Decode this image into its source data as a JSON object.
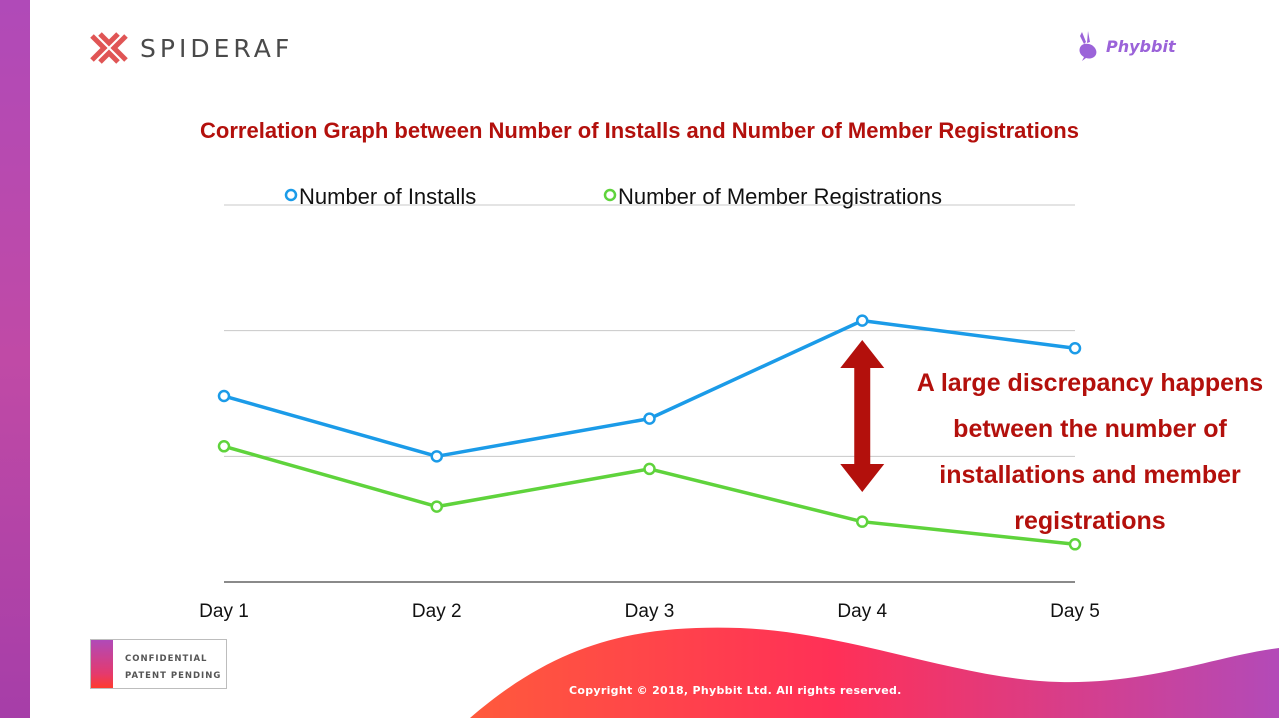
{
  "brand": {
    "left_logo_text": "SPIDERAF",
    "right_logo_text": "Phybbit"
  },
  "footer": {
    "confidential": "CONFIDENTIAL",
    "patent": "PATENT PENDING",
    "copyright": "Copyright © 2018, Phybbit Ltd. All rights reserved."
  },
  "annotation": {
    "line1": "A large discrepancy happens",
    "line2": "between the number of",
    "line3": "installations and member",
    "line4": "registrations"
  },
  "colors": {
    "title": "#b3100c",
    "installs": "#1b9be8",
    "registrations": "#5fd33c",
    "arrow": "#b3100c",
    "gridline": "#c8c8c8"
  },
  "chart_data": {
    "type": "line",
    "title": "Correlation Graph between Number of Installs and Number of Member Registrations",
    "categories": [
      "Day 1",
      "Day 2",
      "Day 3",
      "Day 4",
      "Day 5"
    ],
    "series": [
      {
        "name": "Number of Installs",
        "values": [
          74,
          50,
          65,
          104,
          93
        ]
      },
      {
        "name": "Number of Member Registrations",
        "values": [
          54,
          30,
          45,
          24,
          15
        ]
      }
    ],
    "ylim": [
      0,
      150
    ],
    "grid": true,
    "legend": "top",
    "xlabel": "",
    "ylabel": ""
  }
}
